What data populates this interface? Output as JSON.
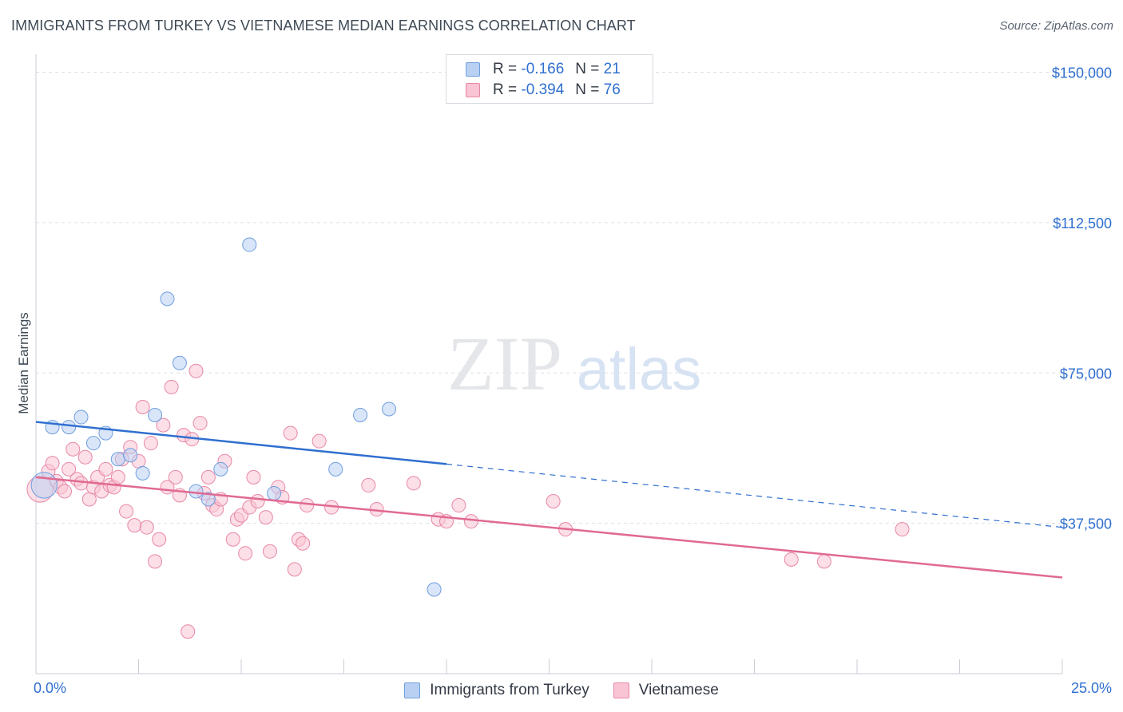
{
  "title": "IMMIGRANTS FROM TURKEY VS VIETNAMESE MEDIAN EARNINGS CORRELATION CHART",
  "source": "Source: ZipAtlas.com",
  "watermark": {
    "zip": "ZIP",
    "atlas": "atlas"
  },
  "legend": {
    "r_label": "R =",
    "n_label": "N =",
    "rows": [
      {
        "r": "-0.166",
        "n": "21"
      },
      {
        "r": "-0.394",
        "n": "76"
      }
    ]
  },
  "colors": {
    "blue_fill": "#b9d0f3",
    "blue_stroke": "#6f9fdf",
    "blue_line": "#2f6fcf",
    "pink_fill": "#f9c4d3",
    "pink_stroke": "#e888a6",
    "pink_line": "#e06a93",
    "axis_text": "#2f6fcf",
    "grid": "#dde1e6"
  },
  "chart_data": {
    "type": "scatter",
    "title": "IMMIGRANTS FROM TURKEY VS VIETNAMESE MEDIAN EARNINGS CORRELATION CHART",
    "xlabel": "",
    "ylabel": "Median Earnings",
    "xlim": [
      0,
      25
    ],
    "ylim": [
      0,
      152500
    ],
    "x_tick_labels": [
      "0.0%",
      "25.0%"
    ],
    "y_ticks": [
      37500,
      75000,
      112500,
      150000
    ],
    "y_tick_labels": [
      "$37,500",
      "$75,000",
      "$112,500",
      "$150,000"
    ],
    "grid": true,
    "legend_position": "top-center",
    "series": [
      {
        "name": "Immigrants from Turkey",
        "color": "blue",
        "points": [
          [
            0.2,
            47000,
            1.9
          ],
          [
            0.4,
            61500,
            1
          ],
          [
            0.8,
            61500,
            1
          ],
          [
            1.1,
            64000,
            1
          ],
          [
            1.4,
            57500,
            1
          ],
          [
            1.7,
            60000,
            1
          ],
          [
            2.0,
            53500,
            1
          ],
          [
            2.3,
            54500,
            1
          ],
          [
            2.6,
            50000,
            1
          ],
          [
            2.9,
            64500,
            1
          ],
          [
            3.2,
            93500,
            1
          ],
          [
            3.5,
            77500,
            1
          ],
          [
            3.9,
            45500,
            1
          ],
          [
            4.2,
            43500,
            1
          ],
          [
            4.5,
            51000,
            1
          ],
          [
            5.2,
            107000,
            1
          ],
          [
            5.8,
            45000,
            1
          ],
          [
            7.3,
            51000,
            1
          ],
          [
            7.9,
            64500,
            1
          ],
          [
            8.6,
            66000,
            1
          ],
          [
            9.7,
            21000,
            1
          ]
        ],
        "trend": {
          "x_start": 0,
          "y_start": 62800,
          "x_solid_end": 10.0,
          "x_end": 25,
          "y_end": 36500
        }
      },
      {
        "name": "Vietnamese",
        "color": "pink",
        "points": [
          [
            0.1,
            46000,
            1.9
          ],
          [
            0.3,
            50500,
            1
          ],
          [
            0.4,
            52500,
            1
          ],
          [
            0.5,
            48000,
            1
          ],
          [
            0.6,
            46500,
            1
          ],
          [
            0.7,
            45500,
            1
          ],
          [
            0.8,
            51000,
            1
          ],
          [
            0.9,
            56000,
            1
          ],
          [
            1.0,
            48500,
            1
          ],
          [
            1.1,
            47500,
            1
          ],
          [
            1.2,
            54000,
            1
          ],
          [
            1.3,
            43500,
            1
          ],
          [
            1.4,
            46500,
            1
          ],
          [
            1.5,
            49000,
            1
          ],
          [
            1.6,
            45500,
            1
          ],
          [
            1.7,
            51000,
            1
          ],
          [
            1.8,
            47000,
            1
          ],
          [
            1.9,
            46500,
            1
          ],
          [
            2.0,
            49000,
            1
          ],
          [
            2.1,
            53500,
            1
          ],
          [
            2.2,
            40500,
            1
          ],
          [
            2.3,
            56500,
            1
          ],
          [
            2.4,
            37000,
            1
          ],
          [
            2.5,
            53000,
            1
          ],
          [
            2.6,
            66500,
            1
          ],
          [
            2.7,
            36500,
            1
          ],
          [
            2.8,
            57500,
            1
          ],
          [
            2.9,
            28000,
            1
          ],
          [
            3.0,
            33500,
            1
          ],
          [
            3.1,
            62000,
            1
          ],
          [
            3.2,
            46500,
            1
          ],
          [
            3.3,
            71500,
            1
          ],
          [
            3.4,
            49000,
            1
          ],
          [
            3.5,
            44500,
            1
          ],
          [
            3.6,
            59500,
            1
          ],
          [
            3.7,
            10500,
            1
          ],
          [
            3.8,
            58500,
            1
          ],
          [
            3.9,
            75500,
            1
          ],
          [
            4.0,
            62500,
            1
          ],
          [
            4.1,
            45000,
            1
          ],
          [
            4.2,
            49000,
            1
          ],
          [
            4.3,
            42000,
            1
          ],
          [
            4.4,
            41000,
            1
          ],
          [
            4.5,
            43500,
            1
          ],
          [
            4.6,
            53000,
            1
          ],
          [
            4.8,
            33500,
            1
          ],
          [
            4.9,
            38500,
            1
          ],
          [
            5.0,
            39500,
            1
          ],
          [
            5.1,
            30000,
            1
          ],
          [
            5.2,
            41500,
            1
          ],
          [
            5.3,
            49000,
            1
          ],
          [
            5.4,
            43000,
            1
          ],
          [
            5.6,
            39000,
            1
          ],
          [
            5.7,
            30500,
            1
          ],
          [
            5.9,
            46500,
            1
          ],
          [
            6.0,
            44000,
            1
          ],
          [
            6.2,
            60000,
            1
          ],
          [
            6.3,
            26000,
            1
          ],
          [
            6.4,
            33500,
            1
          ],
          [
            6.5,
            32500,
            1
          ],
          [
            6.6,
            42000,
            1
          ],
          [
            6.9,
            58000,
            1
          ],
          [
            7.2,
            41500,
            1
          ],
          [
            8.1,
            47000,
            1
          ],
          [
            8.3,
            41000,
            1
          ],
          [
            9.2,
            47500,
            1
          ],
          [
            9.8,
            38500,
            1
          ],
          [
            10.0,
            38000,
            1
          ],
          [
            10.3,
            42000,
            1
          ],
          [
            10.6,
            38000,
            1
          ],
          [
            12.6,
            43000,
            1
          ],
          [
            12.9,
            36000,
            1
          ],
          [
            18.4,
            28500,
            1
          ],
          [
            19.2,
            28000,
            1
          ],
          [
            21.1,
            36000,
            1
          ]
        ],
        "trend": {
          "x_start": 0,
          "y_start": 49000,
          "x_end": 25,
          "y_end": 24000
        }
      }
    ]
  }
}
